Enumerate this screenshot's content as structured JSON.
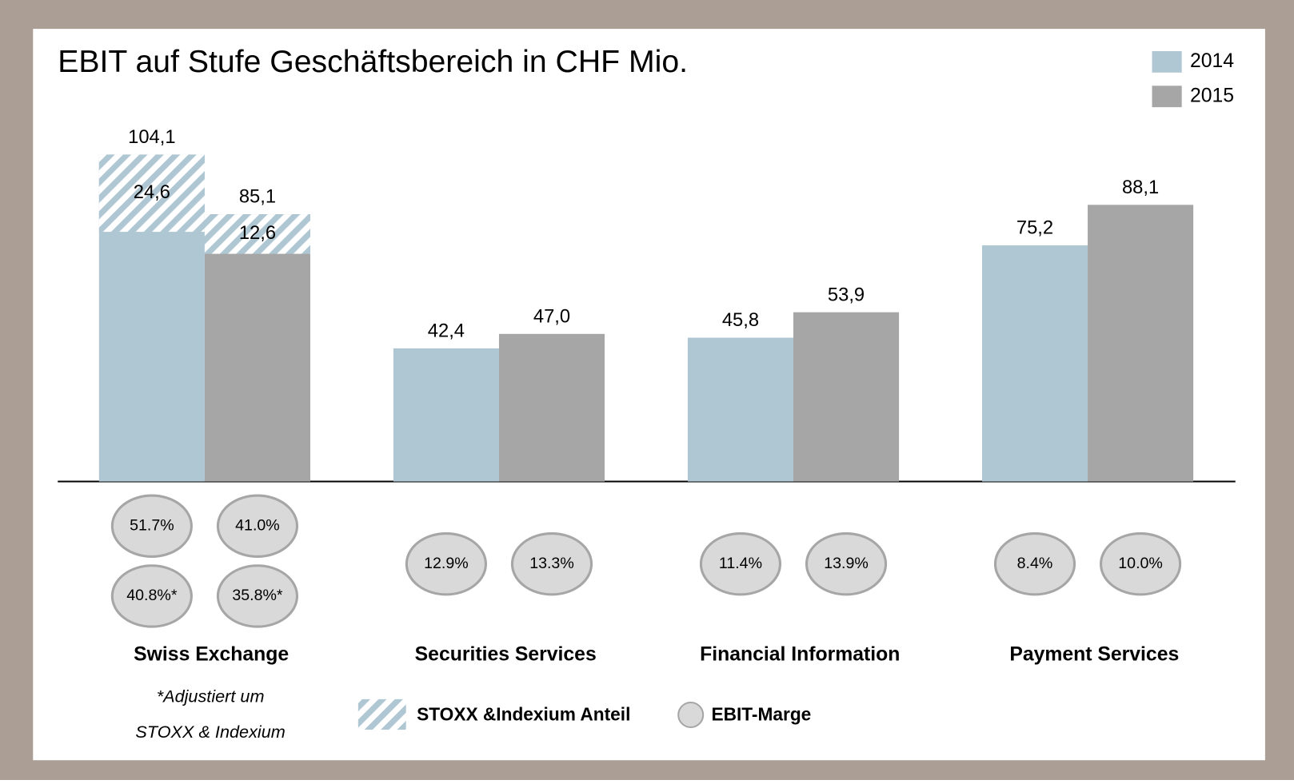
{
  "chart_data": {
    "type": "bar",
    "title": "EBIT auf Stufe Geschäftsbereich in CHF Mio.",
    "categories": [
      "Swiss Exchange",
      "Securities Services",
      "Financial Information",
      "Payment Services"
    ],
    "series": [
      {
        "name": "2014",
        "color": "#afc6d3",
        "values": [
          104.1,
          42.4,
          45.8,
          75.2
        ],
        "value_labels": [
          "104,1",
          "42,4",
          "45,8",
          "75,2"
        ],
        "hatched_part": [
          24.6,
          null,
          null,
          null
        ],
        "hatched_labels": [
          "24,6",
          null,
          null,
          null
        ],
        "ebit_margin": [
          [
            "51.7%",
            "40.8%*"
          ],
          [
            "12.9%"
          ],
          [
            "11.4%"
          ],
          [
            "8.4%"
          ]
        ]
      },
      {
        "name": "2015",
        "color": "#a6a6a6",
        "values": [
          85.1,
          47.0,
          53.9,
          88.1
        ],
        "value_labels": [
          "85,1",
          "47,0",
          "53,9",
          "88,1"
        ],
        "hatched_part": [
          12.6,
          null,
          null,
          null
        ],
        "hatched_labels": [
          "12,6",
          null,
          null,
          null
        ],
        "ebit_margin": [
          [
            "41.0%",
            "35.8%*"
          ],
          [
            "13.3%"
          ],
          [
            "13.9%"
          ],
          [
            "10.0%"
          ]
        ]
      }
    ],
    "ylim": [
      0,
      110
    ],
    "hatch_legend": "STOXX &Indexium Anteil",
    "margin_legend": "EBIT-Marge",
    "footnote": [
      "*Adjustiert um",
      "STOXX & Indexium"
    ],
    "legend": "top-right"
  }
}
